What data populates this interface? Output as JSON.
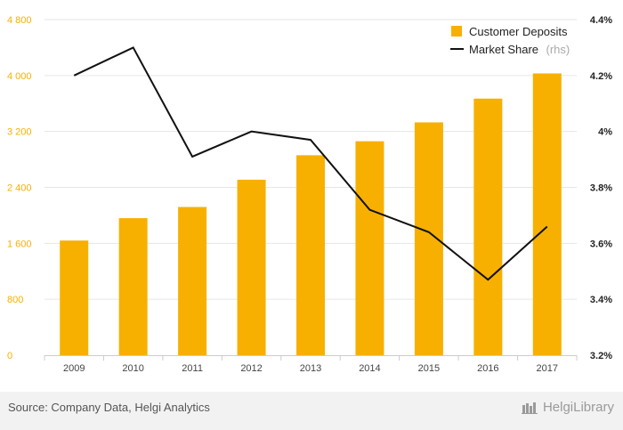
{
  "chart_data": {
    "type": "bar+line",
    "categories": [
      "2009",
      "2010",
      "2011",
      "2012",
      "2013",
      "2014",
      "2015",
      "2016",
      "2017"
    ],
    "series": [
      {
        "name": "Customer Deposits",
        "type": "bar",
        "axis": "left",
        "values": [
          1640,
          1960,
          2120,
          2510,
          2860,
          3060,
          3330,
          3670,
          4030
        ]
      },
      {
        "name": "Market Share",
        "name_suffix": "(rhs)",
        "type": "line",
        "axis": "right",
        "values": [
          4.2,
          4.3,
          3.91,
          4.0,
          3.97,
          3.72,
          3.64,
          3.47,
          3.66
        ]
      }
    ],
    "left_axis": {
      "ylim": [
        0,
        4800
      ],
      "ticks": [
        "0",
        "800",
        "1 600",
        "2 400",
        "3 200",
        "4 000",
        "4 800"
      ],
      "tick_values": [
        0,
        800,
        1600,
        2400,
        3200,
        4000,
        4800
      ]
    },
    "right_axis": {
      "ylim": [
        3.2,
        4.4
      ],
      "ticks": [
        "3.2%",
        "3.4%",
        "3.6%",
        "3.8%",
        "4%",
        "4.2%",
        "4.4%"
      ],
      "tick_values": [
        3.2,
        3.4,
        3.6,
        3.8,
        4.0,
        4.2,
        4.4
      ]
    },
    "grid": true,
    "legend_position": "top-right",
    "colors": {
      "bar": "#f7b000",
      "line": "#111111",
      "left_ticks": "#f7b000",
      "grid": "#e6e6e6"
    }
  },
  "footer": {
    "source": "Source: Company Data, Helgi Analytics",
    "brand": "HelgiLibrary"
  }
}
